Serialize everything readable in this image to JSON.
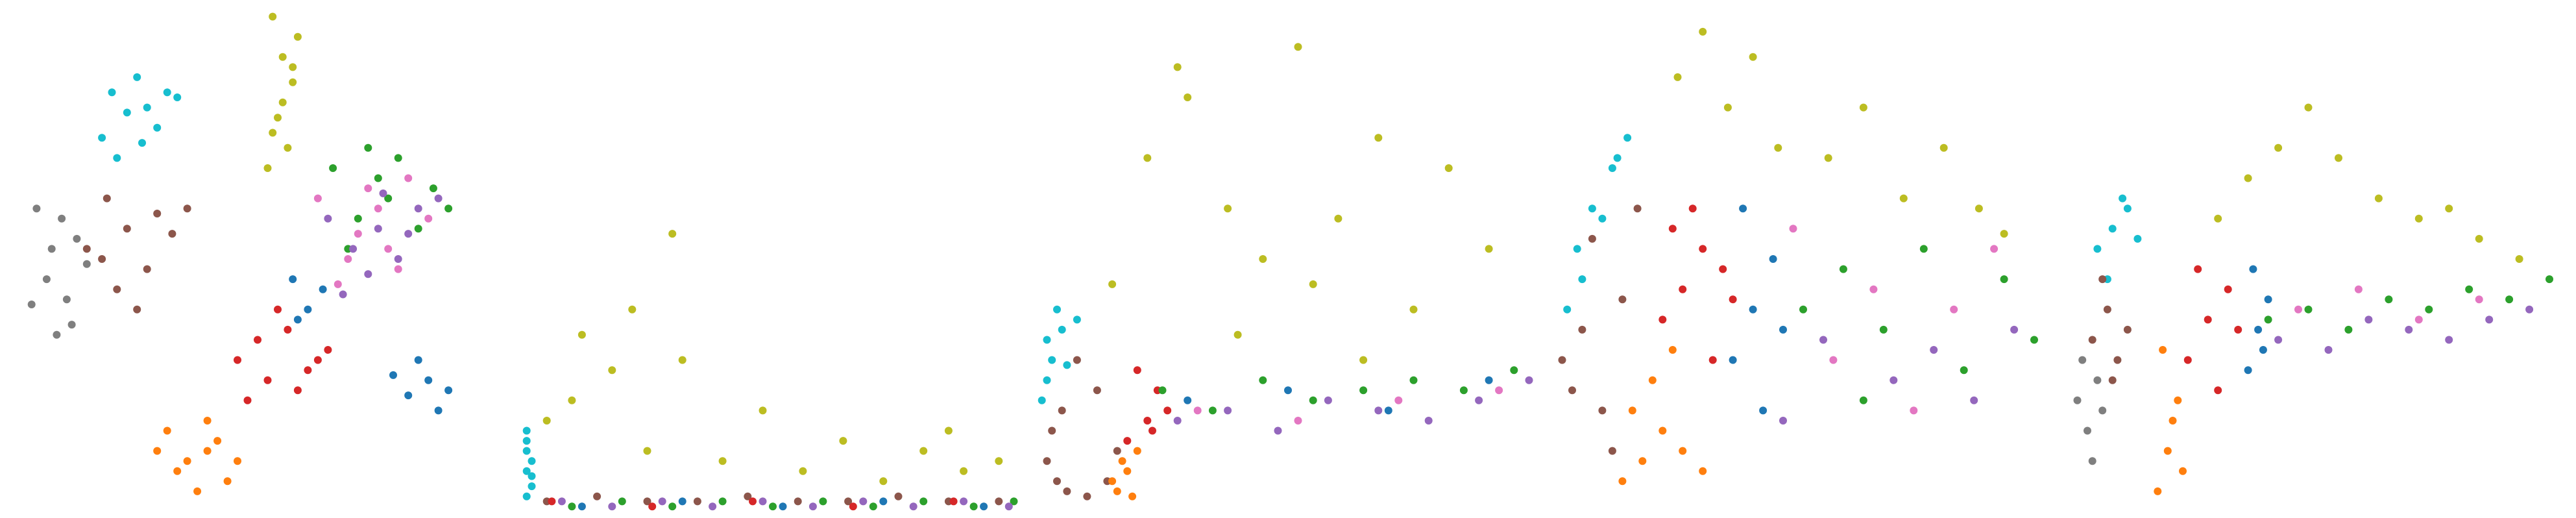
{
  "colors": {
    "c0": "#1f77b4",
    "c1": "#ff7f0e",
    "c2": "#2ca02c",
    "c3": "#d62728",
    "c4": "#9467bd",
    "c5": "#8c564b",
    "c6": "#e377c2",
    "c7": "#7f7f7f",
    "c8": "#bcbd22",
    "c9": "#17becf"
  },
  "chart_data": [
    {
      "type": "scatter",
      "title": "",
      "xlabel": "",
      "ylabel": "",
      "axes": "off",
      "grid": false,
      "legend": "none",
      "series": [
        {
          "color": "c9",
          "x": [
            0.21,
            0.24,
            0.28,
            0.32,
            0.26,
            0.19,
            0.3,
            0.34,
            0.22,
            0.27
          ],
          "y": [
            0.83,
            0.79,
            0.8,
            0.83,
            0.86,
            0.74,
            0.76,
            0.82,
            0.7,
            0.73
          ]
        },
        {
          "color": "c7",
          "x": [
            0.08,
            0.12,
            0.14,
            0.06,
            0.1,
            0.16,
            0.05,
            0.11,
            0.13,
            0.09
          ],
          "y": [
            0.46,
            0.42,
            0.54,
            0.6,
            0.35,
            0.49,
            0.41,
            0.58,
            0.37,
            0.52
          ]
        },
        {
          "color": "c5",
          "x": [
            0.19,
            0.24,
            0.3,
            0.36,
            0.22,
            0.28,
            0.33,
            0.2,
            0.26,
            0.16
          ],
          "y": [
            0.5,
            0.56,
            0.59,
            0.6,
            0.44,
            0.48,
            0.55,
            0.62,
            0.4,
            0.52
          ]
        },
        {
          "color": "c8",
          "x": [
            0.53,
            0.55,
            0.57,
            0.54,
            0.56,
            0.52,
            0.58,
            0.55,
            0.53,
            0.57
          ],
          "y": [
            0.98,
            0.9,
            0.85,
            0.78,
            0.72,
            0.68,
            0.94,
            0.81,
            0.75,
            0.88
          ]
        },
        {
          "color": "c2",
          "x": [
            0.65,
            0.72,
            0.78,
            0.85,
            0.7,
            0.76,
            0.82,
            0.68,
            0.88,
            0.74
          ],
          "y": [
            0.68,
            0.72,
            0.7,
            0.64,
            0.58,
            0.62,
            0.56,
            0.52,
            0.6,
            0.66
          ]
        },
        {
          "color": "c6",
          "x": [
            0.62,
            0.7,
            0.74,
            0.8,
            0.68,
            0.76,
            0.84,
            0.66,
            0.72,
            0.78
          ],
          "y": [
            0.62,
            0.55,
            0.6,
            0.66,
            0.5,
            0.52,
            0.58,
            0.45,
            0.64,
            0.48
          ]
        },
        {
          "color": "c4",
          "x": [
            0.64,
            0.69,
            0.75,
            0.8,
            0.72,
            0.78,
            0.86,
            0.67,
            0.74,
            0.82
          ],
          "y": [
            0.58,
            0.52,
            0.63,
            0.55,
            0.47,
            0.5,
            0.62,
            0.43,
            0.56,
            0.6
          ]
        },
        {
          "color": "c3",
          "x": [
            0.46,
            0.52,
            0.58,
            0.62,
            0.5,
            0.56,
            0.48,
            0.6,
            0.54,
            0.64
          ],
          "y": [
            0.3,
            0.26,
            0.24,
            0.3,
            0.34,
            0.36,
            0.22,
            0.28,
            0.4,
            0.32
          ]
        },
        {
          "color": "c0",
          "x": [
            0.57,
            0.6,
            0.63,
            0.58,
            0.77,
            0.8,
            0.84,
            0.88,
            0.82,
            0.86
          ],
          "y": [
            0.46,
            0.4,
            0.44,
            0.38,
            0.27,
            0.23,
            0.26,
            0.24,
            0.3,
            0.2
          ]
        },
        {
          "color": "c1",
          "x": [
            0.32,
            0.36,
            0.4,
            0.44,
            0.38,
            0.42,
            0.34,
            0.46,
            0.4,
            0.3
          ],
          "y": [
            0.16,
            0.1,
            0.12,
            0.06,
            0.04,
            0.14,
            0.08,
            0.1,
            0.18,
            0.12
          ]
        }
      ]
    },
    {
      "type": "scatter",
      "title": "",
      "xlabel": "",
      "ylabel": "",
      "axes": "off",
      "grid": false,
      "legend": "none",
      "series": [
        {
          "color": "c9",
          "x": [
            0.01,
            0.01,
            0.02,
            0.01,
            0.02,
            0.01,
            0.02,
            0.01
          ],
          "y": [
            0.08,
            0.12,
            0.05,
            0.16,
            0.1,
            0.03,
            0.07,
            0.14
          ]
        },
        {
          "color": "c8",
          "x": [
            0.05,
            0.1,
            0.18,
            0.25,
            0.32,
            0.4,
            0.48,
            0.56,
            0.64,
            0.72,
            0.8,
            0.88,
            0.95,
            0.12,
            0.22,
            0.3,
            0.85
          ],
          "y": [
            0.18,
            0.22,
            0.28,
            0.12,
            0.3,
            0.1,
            0.2,
            0.08,
            0.14,
            0.06,
            0.12,
            0.08,
            0.1,
            0.35,
            0.4,
            0.55,
            0.16
          ]
        },
        {
          "color": "c5",
          "x": [
            0.05,
            0.15,
            0.25,
            0.35,
            0.45,
            0.55,
            0.65,
            0.75,
            0.85,
            0.95
          ],
          "y": [
            0.02,
            0.03,
            0.02,
            0.02,
            0.03,
            0.02,
            0.02,
            0.03,
            0.02,
            0.02
          ]
        },
        {
          "color": "c2",
          "x": [
            0.1,
            0.2,
            0.3,
            0.4,
            0.5,
            0.6,
            0.7,
            0.8,
            0.9,
            0.98
          ],
          "y": [
            0.01,
            0.02,
            0.01,
            0.02,
            0.01,
            0.02,
            0.01,
            0.02,
            0.01,
            0.02
          ]
        },
        {
          "color": "c4",
          "x": [
            0.08,
            0.18,
            0.28,
            0.38,
            0.48,
            0.58,
            0.68,
            0.78,
            0.88,
            0.97
          ],
          "y": [
            0.02,
            0.01,
            0.02,
            0.01,
            0.02,
            0.01,
            0.02,
            0.01,
            0.02,
            0.01
          ]
        },
        {
          "color": "c0",
          "x": [
            0.12,
            0.32,
            0.52,
            0.72,
            0.92
          ],
          "y": [
            0.01,
            0.02,
            0.01,
            0.02,
            0.01
          ]
        },
        {
          "color": "c3",
          "x": [
            0.06,
            0.26,
            0.46,
            0.66,
            0.86
          ],
          "y": [
            0.02,
            0.01,
            0.02,
            0.01,
            0.02
          ]
        }
      ]
    },
    {
      "type": "scatter",
      "title": "",
      "xlabel": "",
      "ylabel": "",
      "axes": "off",
      "grid": false,
      "legend": "none",
      "series": [
        {
          "color": "c9",
          "x": [
            0.01,
            0.02,
            0.03,
            0.05,
            0.08,
            0.04,
            0.02,
            0.06
          ],
          "y": [
            0.22,
            0.26,
            0.3,
            0.36,
            0.38,
            0.4,
            0.34,
            0.29
          ]
        },
        {
          "color": "c5",
          "x": [
            0.02,
            0.04,
            0.06,
            0.1,
            0.14,
            0.16,
            0.12,
            0.08,
            0.03,
            0.05
          ],
          "y": [
            0.1,
            0.06,
            0.04,
            0.03,
            0.06,
            0.12,
            0.24,
            0.3,
            0.16,
            0.2
          ]
        },
        {
          "color": "c1",
          "x": [
            0.16,
            0.18,
            0.2,
            0.15,
            0.17,
            0.19
          ],
          "y": [
            0.04,
            0.08,
            0.12,
            0.06,
            0.1,
            0.03
          ]
        },
        {
          "color": "c3",
          "x": [
            0.18,
            0.22,
            0.24,
            0.2,
            0.26,
            0.23
          ],
          "y": [
            0.14,
            0.18,
            0.24,
            0.28,
            0.2,
            0.16
          ]
        },
        {
          "color": "c8",
          "x": [
            0.15,
            0.22,
            0.3,
            0.38,
            0.45,
            0.52,
            0.6,
            0.68,
            0.75,
            0.82,
            0.9,
            0.28,
            0.4,
            0.55,
            0.65
          ],
          "y": [
            0.45,
            0.7,
            0.82,
            0.6,
            0.5,
            0.92,
            0.58,
            0.74,
            0.4,
            0.68,
            0.52,
            0.88,
            0.35,
            0.45,
            0.3
          ]
        },
        {
          "color": "c2",
          "x": [
            0.25,
            0.35,
            0.45,
            0.55,
            0.65,
            0.75,
            0.85,
            0.95
          ],
          "y": [
            0.24,
            0.2,
            0.26,
            0.22,
            0.24,
            0.26,
            0.24,
            0.28
          ]
        },
        {
          "color": "c4",
          "x": [
            0.28,
            0.38,
            0.48,
            0.58,
            0.68,
            0.78,
            0.88,
            0.98
          ],
          "y": [
            0.18,
            0.2,
            0.16,
            0.22,
            0.2,
            0.18,
            0.22,
            0.26
          ]
        },
        {
          "color": "c6",
          "x": [
            0.32,
            0.52,
            0.72,
            0.92
          ],
          "y": [
            0.2,
            0.18,
            0.22,
            0.24
          ]
        },
        {
          "color": "c0",
          "x": [
            0.3,
            0.5,
            0.7,
            0.9
          ],
          "y": [
            0.22,
            0.24,
            0.2,
            0.26
          ]
        }
      ]
    },
    {
      "type": "scatter",
      "title": "",
      "xlabel": "",
      "ylabel": "",
      "axes": "off",
      "grid": false,
      "legend": "none",
      "series": [
        {
          "color": "c9",
          "x": [
            0.05,
            0.08,
            0.12,
            0.15,
            0.06,
            0.1,
            0.03,
            0.13
          ],
          "y": [
            0.52,
            0.6,
            0.68,
            0.74,
            0.46,
            0.58,
            0.4,
            0.7
          ]
        },
        {
          "color": "c5",
          "x": [
            0.02,
            0.06,
            0.1,
            0.14,
            0.08,
            0.04,
            0.12,
            0.17
          ],
          "y": [
            0.3,
            0.36,
            0.2,
            0.42,
            0.54,
            0.24,
            0.12,
            0.6
          ]
        },
        {
          "color": "c1",
          "x": [
            0.14,
            0.18,
            0.22,
            0.26,
            0.3,
            0.2,
            0.24,
            0.16
          ],
          "y": [
            0.06,
            0.1,
            0.16,
            0.12,
            0.08,
            0.26,
            0.32,
            0.2
          ]
        },
        {
          "color": "c3",
          "x": [
            0.22,
            0.26,
            0.3,
            0.34,
            0.28,
            0.32,
            0.24,
            0.36
          ],
          "y": [
            0.38,
            0.44,
            0.52,
            0.48,
            0.6,
            0.3,
            0.56,
            0.42
          ]
        },
        {
          "color": "c0",
          "x": [
            0.36,
            0.4,
            0.44,
            0.38,
            0.42,
            0.46
          ],
          "y": [
            0.3,
            0.4,
            0.5,
            0.6,
            0.2,
            0.36
          ]
        },
        {
          "color": "c8",
          "x": [
            0.25,
            0.3,
            0.35,
            0.4,
            0.45,
            0.55,
            0.62,
            0.7,
            0.78,
            0.85,
            0.9
          ],
          "y": [
            0.86,
            0.95,
            0.8,
            0.9,
            0.72,
            0.7,
            0.8,
            0.62,
            0.72,
            0.6,
            0.55
          ]
        },
        {
          "color": "c2",
          "x": [
            0.5,
            0.58,
            0.66,
            0.74,
            0.82,
            0.9,
            0.96,
            0.62
          ],
          "y": [
            0.4,
            0.48,
            0.36,
            0.52,
            0.28,
            0.46,
            0.34,
            0.22
          ]
        },
        {
          "color": "c6",
          "x": [
            0.48,
            0.56,
            0.64,
            0.72,
            0.8,
            0.88
          ],
          "y": [
            0.56,
            0.3,
            0.44,
            0.2,
            0.4,
            0.52
          ]
        },
        {
          "color": "c4",
          "x": [
            0.46,
            0.54,
            0.68,
            0.76,
            0.84,
            0.92
          ],
          "y": [
            0.18,
            0.34,
            0.26,
            0.32,
            0.22,
            0.36
          ]
        }
      ]
    },
    {
      "type": "scatter",
      "title": "",
      "xlabel": "",
      "ylabel": "",
      "axes": "off",
      "grid": false,
      "legend": "none",
      "series": [
        {
          "color": "c9",
          "x": [
            0.06,
            0.09,
            0.12,
            0.08,
            0.11,
            0.14
          ],
          "y": [
            0.52,
            0.56,
            0.6,
            0.46,
            0.62,
            0.54
          ]
        },
        {
          "color": "c7",
          "x": [
            0.02,
            0.04,
            0.06,
            0.03,
            0.05,
            0.07
          ],
          "y": [
            0.22,
            0.16,
            0.26,
            0.3,
            0.1,
            0.2
          ]
        },
        {
          "color": "c5",
          "x": [
            0.05,
            0.08,
            0.1,
            0.07,
            0.12,
            0.09
          ],
          "y": [
            0.34,
            0.4,
            0.3,
            0.46,
            0.36,
            0.26
          ]
        },
        {
          "color": "c1",
          "x": [
            0.18,
            0.2,
            0.22,
            0.19,
            0.21,
            0.23
          ],
          "y": [
            0.04,
            0.12,
            0.22,
            0.32,
            0.18,
            0.08
          ]
        },
        {
          "color": "c3",
          "x": [
            0.24,
            0.28,
            0.32,
            0.26,
            0.3,
            0.34
          ],
          "y": [
            0.3,
            0.38,
            0.44,
            0.48,
            0.24,
            0.36
          ]
        },
        {
          "color": "c0",
          "x": [
            0.36,
            0.38,
            0.4,
            0.37,
            0.39
          ],
          "y": [
            0.28,
            0.36,
            0.42,
            0.48,
            0.32
          ]
        },
        {
          "color": "c8",
          "x": [
            0.3,
            0.36,
            0.42,
            0.48,
            0.54,
            0.62,
            0.7,
            0.76,
            0.82,
            0.9
          ],
          "y": [
            0.58,
            0.66,
            0.72,
            0.8,
            0.7,
            0.62,
            0.58,
            0.6,
            0.54,
            0.5
          ]
        },
        {
          "color": "c2",
          "x": [
            0.4,
            0.48,
            0.56,
            0.64,
            0.72,
            0.8,
            0.88,
            0.96
          ],
          "y": [
            0.38,
            0.4,
            0.36,
            0.42,
            0.4,
            0.44,
            0.42,
            0.46
          ]
        },
        {
          "color": "c4",
          "x": [
            0.42,
            0.52,
            0.6,
            0.68,
            0.76,
            0.84,
            0.92
          ],
          "y": [
            0.34,
            0.32,
            0.38,
            0.36,
            0.34,
            0.38,
            0.4
          ]
        },
        {
          "color": "c6",
          "x": [
            0.46,
            0.58,
            0.7,
            0.82
          ],
          "y": [
            0.4,
            0.44,
            0.38,
            0.42
          ]
        }
      ]
    }
  ]
}
